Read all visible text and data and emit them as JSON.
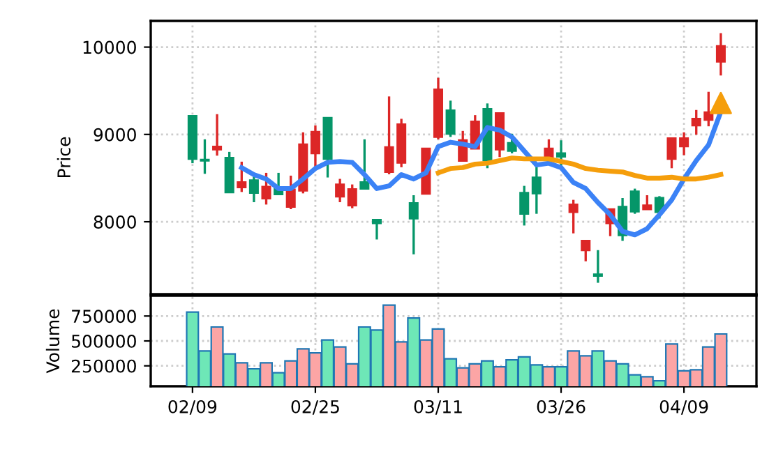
{
  "chart_data": [
    {
      "type": "candlestick",
      "ylabel": "Price",
      "ylim": [
        7170,
        10300
      ],
      "yticks": [
        8000,
        9000,
        10000
      ],
      "grid": true,
      "tick_labels": "y",
      "categories": [
        null,
        null,
        null,
        null,
        null,
        null,
        null,
        null,
        null,
        null,
        null,
        null,
        null,
        null,
        null,
        null,
        null,
        null,
        null,
        null,
        null,
        null,
        null,
        null,
        null,
        null,
        null,
        null,
        null,
        null,
        null,
        null,
        null,
        null,
        null,
        null,
        null,
        null,
        null,
        null,
        null,
        null,
        null,
        null
      ],
      "ohlc": [
        [
          8720,
          9210,
          8670,
          9210
        ],
        [
          8700,
          8944,
          8549,
          8710
        ],
        [
          8859,
          9232,
          8757,
          8827
        ],
        [
          8336,
          8800,
          8336,
          8731
        ],
        [
          8453,
          8688,
          8341,
          8395
        ],
        [
          8331,
          8517,
          8224,
          8475
        ],
        [
          8400,
          8560,
          8197,
          8267
        ],
        [
          8315,
          8560,
          8315,
          8384
        ],
        [
          8368,
          8528,
          8144,
          8171
        ],
        [
          8885,
          9024,
          8325,
          8357
        ],
        [
          9029,
          9104,
          8624,
          8784
        ],
        [
          8720,
          9189,
          8507,
          9189
        ],
        [
          8427,
          8491,
          8224,
          8288
        ],
        [
          8373,
          8427,
          8155,
          8187
        ],
        [
          8379,
          8944,
          8379,
          8453
        ],
        [
          7984,
          8021,
          7797,
          8021
        ],
        [
          8853,
          9435,
          8544,
          8571
        ],
        [
          9115,
          9179,
          8624,
          8677
        ],
        [
          8037,
          8304,
          7627,
          8213
        ],
        [
          8837,
          8837,
          8320,
          8320
        ],
        [
          9515,
          9648,
          8944,
          8971
        ],
        [
          9008,
          9387,
          8971,
          9275
        ],
        [
          8933,
          9040,
          8699,
          8699
        ],
        [
          9147,
          9221,
          8837,
          8837
        ],
        [
          8704,
          9355,
          8613,
          9291
        ],
        [
          9243,
          9243,
          8741,
          8827
        ],
        [
          8811,
          9008,
          8784,
          8901
        ],
        [
          8091,
          8411,
          7957,
          8331
        ],
        [
          8325,
          8624,
          8091,
          8507
        ],
        [
          8837,
          8944,
          8747,
          8747
        ],
        [
          8747,
          8933,
          8624,
          8784
        ],
        [
          8197,
          8251,
          7867,
          8112
        ],
        [
          7781,
          7781,
          7547,
          7675
        ],
        [
          7381,
          7675,
          7301,
          7397
        ],
        [
          8144,
          8144,
          7835,
          7984
        ],
        [
          7845,
          8272,
          7781,
          8171
        ],
        [
          8117,
          8379,
          8091,
          8347
        ],
        [
          8187,
          8304,
          8144,
          8144
        ],
        [
          8112,
          8293,
          8037,
          8272
        ],
        [
          8955,
          8955,
          8613,
          8720
        ],
        [
          8955,
          9024,
          8763,
          8864
        ],
        [
          9179,
          9280,
          8997,
          9104
        ],
        [
          9253,
          9488,
          9093,
          9168
        ],
        [
          10011,
          10160,
          9675,
          9835
        ]
      ],
      "colors": [
        "#059669",
        "#059669",
        "#dc2626",
        "#059669",
        "#dc2626",
        "#059669",
        "#dc2626",
        "#059669",
        "#dc2626",
        "#dc2626",
        "#dc2626",
        "#059669",
        "#dc2626",
        "#dc2626",
        "#059669",
        "#059669",
        "#dc2626",
        "#dc2626",
        "#059669",
        "#dc2626",
        "#dc2626",
        "#059669",
        "#dc2626",
        "#dc2626",
        "#059669",
        "#dc2626",
        "#059669",
        "#059669",
        "#059669",
        "#dc2626",
        "#059669",
        "#dc2626",
        "#dc2626",
        "#059669",
        "#dc2626",
        "#059669",
        "#059669",
        "#dc2626",
        "#059669",
        "#dc2626",
        "#dc2626",
        "#dc2626",
        "#dc2626",
        "#dc2626"
      ],
      "series": [
        {
          "type": "line",
          "color": "#3b82f6",
          "values": [
            null,
            null,
            null,
            null,
            8620,
            8540,
            8490,
            8380,
            8380,
            8490,
            8610,
            8680,
            8690,
            8680,
            8540,
            8380,
            8410,
            8540,
            8490,
            8560,
            8860,
            8910,
            8890,
            8860,
            9080,
            9050,
            8970,
            8810,
            8650,
            8670,
            8620,
            8450,
            8380,
            8220,
            8080,
            7890,
            7850,
            7920,
            8080,
            8250,
            8490,
            8700,
            8880,
            9260
          ]
        },
        {
          "type": "line",
          "color": "#f59e0b",
          "values": [
            null,
            null,
            null,
            null,
            null,
            null,
            null,
            null,
            null,
            null,
            null,
            null,
            null,
            null,
            null,
            null,
            null,
            null,
            null,
            null,
            8560,
            8610,
            8620,
            8660,
            8670,
            8700,
            8730,
            8720,
            8720,
            8720,
            8690,
            8660,
            8610,
            8590,
            8580,
            8570,
            8530,
            8500,
            8500,
            8510,
            8490,
            8490,
            8510,
            8540
          ]
        },
        {
          "type": "scatter",
          "color": "#f59e0b",
          "marker": "triangle",
          "values": [
            null,
            null,
            null,
            null,
            null,
            null,
            null,
            null,
            null,
            null,
            null,
            null,
            null,
            null,
            null,
            null,
            null,
            null,
            null,
            null,
            null,
            null,
            null,
            null,
            null,
            null,
            null,
            null,
            null,
            null,
            null,
            null,
            null,
            null,
            null,
            null,
            null,
            null,
            null,
            null,
            null,
            null,
            null,
            9360
          ]
        }
      ]
    },
    {
      "type": "bar",
      "ylabel": "Volume",
      "ylim": [
        45000,
        955000
      ],
      "yticks": [
        250000,
        500000,
        750000
      ],
      "grid": true,
      "categories": [
        "02/09",
        null,
        null,
        null,
        null,
        null,
        null,
        null,
        null,
        null,
        "02/25",
        null,
        null,
        null,
        null,
        null,
        null,
        null,
        null,
        null,
        "03/11",
        null,
        null,
        null,
        null,
        null,
        null,
        null,
        null,
        null,
        "03/26",
        null,
        null,
        null,
        null,
        null,
        null,
        null,
        null,
        null,
        "04/09",
        null,
        null,
        null
      ],
      "values": [
        790000,
        400000,
        640000,
        370000,
        280000,
        220000,
        280000,
        180000,
        300000,
        420000,
        380000,
        510000,
        440000,
        270000,
        640000,
        610000,
        860000,
        490000,
        730000,
        510000,
        620000,
        320000,
        230000,
        270000,
        300000,
        240000,
        310000,
        340000,
        260000,
        240000,
        240000,
        400000,
        350000,
        400000,
        300000,
        270000,
        160000,
        140000,
        100000,
        470000,
        200000,
        210000,
        440000,
        570000
      ],
      "colors": [
        "#6ee7b7",
        "#6ee7b7",
        "#fca5a5",
        "#6ee7b7",
        "#fca5a5",
        "#6ee7b7",
        "#fca5a5",
        "#6ee7b7",
        "#fca5a5",
        "#fca5a5",
        "#fca5a5",
        "#6ee7b7",
        "#fca5a5",
        "#fca5a5",
        "#6ee7b7",
        "#6ee7b7",
        "#fca5a5",
        "#fca5a5",
        "#6ee7b7",
        "#fca5a5",
        "#fca5a5",
        "#6ee7b7",
        "#fca5a5",
        "#fca5a5",
        "#6ee7b7",
        "#fca5a5",
        "#6ee7b7",
        "#6ee7b7",
        "#6ee7b7",
        "#fca5a5",
        "#6ee7b7",
        "#fca5a5",
        "#fca5a5",
        "#6ee7b7",
        "#fca5a5",
        "#6ee7b7",
        "#6ee7b7",
        "#fca5a5",
        "#6ee7b7",
        "#fca5a5",
        "#fca5a5",
        "#fca5a5",
        "#fca5a5",
        "#fca5a5"
      ]
    }
  ]
}
